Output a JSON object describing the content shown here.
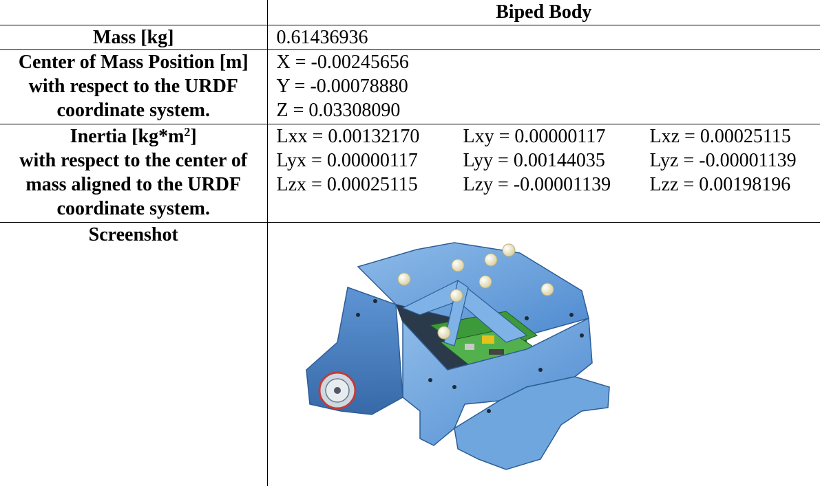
{
  "header": {
    "empty": "",
    "column_title": "Biped Body"
  },
  "mass": {
    "label": "Mass [kg]",
    "value": "0.61436936"
  },
  "com": {
    "label_lines": [
      "Center of Mass Position [m]",
      "with respect to the URDF",
      "coordinate system."
    ],
    "values": [
      "X = -0.00245656",
      "Y = -0.00078880",
      "Z = 0.03308090"
    ]
  },
  "inertia": {
    "label_line1_pre": "Inertia [kg*m",
    "label_line1_sup": "2",
    "label_line1_post": "]",
    "label_lines": [
      "with respect to the center of",
      "mass aligned to the URDF",
      "coordinate system."
    ],
    "rows": [
      [
        "Lxx = 0.00132170",
        "Lxy = 0.00000117",
        "Lxz = 0.00025115"
      ],
      [
        "Lyx = 0.00000117",
        "Lyy = 0.00144035",
        "Lyz = -0.00001139"
      ],
      [
        "Lzx = 0.00025115",
        "Lzy = -0.00001139",
        "Lzz = 0.00198196"
      ]
    ]
  },
  "screenshot": {
    "label": "Screenshot"
  },
  "colors": {
    "body_blue": "#6aa3dd",
    "body_dark": "#3f76b5",
    "pcb_green": "#3d9a3a",
    "marker": "#f3ecc8"
  }
}
